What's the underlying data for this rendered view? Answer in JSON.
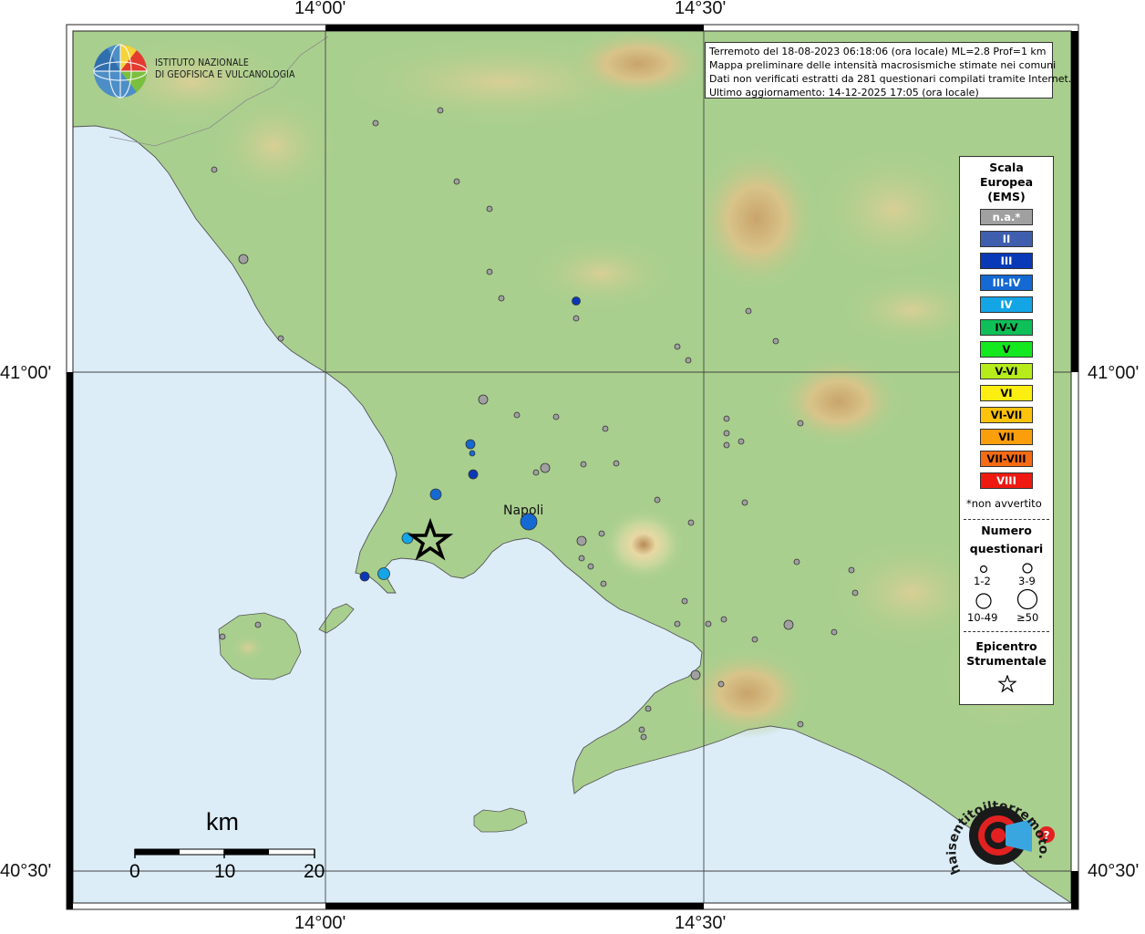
{
  "header": {
    "lines": [
      "Terremoto del 18-08-2023 06:18:06 (ora locale) ML=2.8 Prof=1 km",
      "Mappa preliminare delle intensità macrosismiche stimate nei comuni",
      "Dati non verificati estratti da 281 questionari compilati tramite Internet.",
      "Ultimo aggiornamento: 14-12-2025 17:05 (ora locale)"
    ]
  },
  "logo": {
    "icon": "ingv-globe-icon",
    "line1": "ISTITUTO NAZIONALE",
    "line2": "DI GEOFISICA E VULCANOLOGIA"
  },
  "axes": {
    "top_left": "14°00'",
    "top_right": "14°30'",
    "bottom_left": "14°00'",
    "bottom_right": "14°30'",
    "left_upper": "41°00'",
    "left_lower": "40°30'",
    "right_upper": "41°00'",
    "right_lower": "40°30'"
  },
  "legend": {
    "title_lines": [
      "Scala",
      "Europea",
      "(EMS)"
    ],
    "classes": [
      {
        "label": "n.a.*",
        "color": "#a0a0a0",
        "text": "#ffffff"
      },
      {
        "label": "II",
        "color": "#3f5fae",
        "text": "#ffffff"
      },
      {
        "label": "III",
        "color": "#0a39b8",
        "text": "#ffffff"
      },
      {
        "label": "III-IV",
        "color": "#1469d2",
        "text": "#ffffff"
      },
      {
        "label": "IV",
        "color": "#13a5e6",
        "text": "#ffffff"
      },
      {
        "label": "IV-V",
        "color": "#0fbf58",
        "text": "#000000"
      },
      {
        "label": "V",
        "color": "#14e81e",
        "text": "#000000"
      },
      {
        "label": "V-VI",
        "color": "#b6ec1a",
        "text": "#000000"
      },
      {
        "label": "VI",
        "color": "#fbee10",
        "text": "#000000"
      },
      {
        "label": "VI-VII",
        "color": "#fcc20c",
        "text": "#000000"
      },
      {
        "label": "VII",
        "color": "#fb9e0c",
        "text": "#000000"
      },
      {
        "label": "VII-VIII",
        "color": "#f76b12",
        "text": "#000000"
      },
      {
        "label": "VIII",
        "color": "#ee1a12",
        "text": "#ffffff"
      }
    ],
    "not_felt": "*non avvertito",
    "count_title_1": "Numero",
    "count_title_2": "questionari",
    "sizes": [
      "1-2",
      "3-9",
      "10-49",
      "≥50"
    ],
    "epicenter_title_1": "Epicentro",
    "epicenter_title_2": "Strumentale"
  },
  "scale_bar": {
    "unit": "km",
    "ticks": [
      "0",
      "10",
      "20"
    ]
  },
  "places": {
    "city": "Napoli"
  },
  "watermark": {
    "text": "haisentitoilterremoto.it ? www."
  }
}
